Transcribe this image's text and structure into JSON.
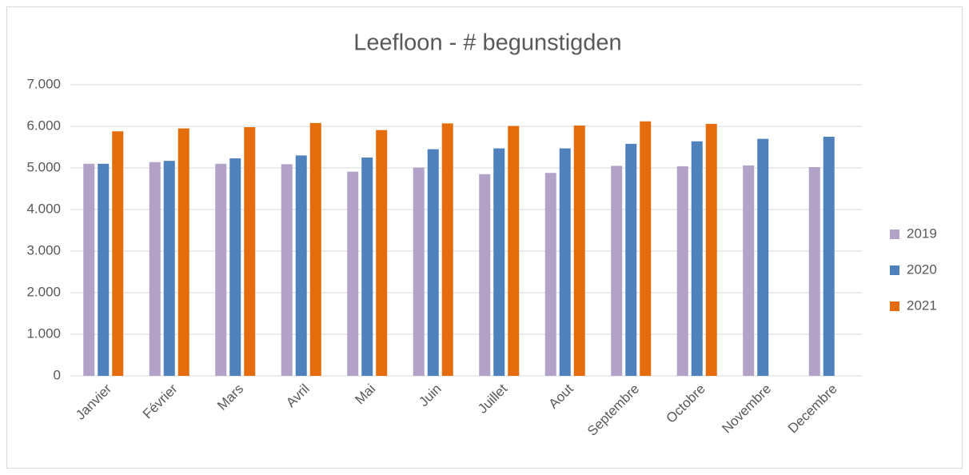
{
  "chart_data": {
    "type": "bar",
    "title": "Leefloon - # begunstigden",
    "categories": [
      "Janvier",
      "Février",
      "Mars",
      "Avril",
      "Mai",
      "Juin",
      "Juillet",
      "Aout",
      "Septembre",
      "Octobre",
      "Novembre",
      "Decembre"
    ],
    "series": [
      {
        "name": "2019",
        "color": "#b3a2c7",
        "values": [
          5100,
          5140,
          5100,
          5090,
          4910,
          5010,
          4850,
          4880,
          5050,
          5040,
          5060,
          5020
        ]
      },
      {
        "name": "2020",
        "color": "#4f81bd",
        "values": [
          5100,
          5170,
          5230,
          5300,
          5250,
          5450,
          5470,
          5470,
          5580,
          5640,
          5700,
          5750
        ]
      },
      {
        "name": "2021",
        "color": "#e46c0a",
        "values": [
          5880,
          5950,
          5980,
          6080,
          5910,
          6070,
          6010,
          6020,
          6120,
          6060,
          null,
          null
        ]
      }
    ],
    "ylim": [
      0,
      7000
    ],
    "yticks": [
      0,
      {
        "value": 1000,
        "label": "1.000"
      },
      {
        "value": 2000,
        "label": "2.000"
      },
      {
        "value": 3000,
        "label": "3.000"
      },
      {
        "value": 4000,
        "label": "4.000"
      },
      {
        "value": 5000,
        "label": "5.000"
      },
      {
        "value": 6000,
        "label": "6.000"
      },
      {
        "value": 7000,
        "label": "7.000"
      }
    ],
    "grid": true,
    "legend": "right"
  }
}
